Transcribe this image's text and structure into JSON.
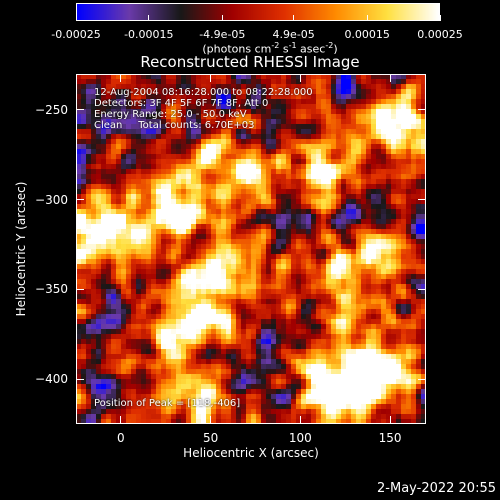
{
  "colorbar": {
    "ticks": [
      "-0.00025",
      "-0.00015",
      "-4.9e-05",
      "4.9e-05",
      "0.00015",
      "0.00025"
    ],
    "tick_values": [
      -0.00025,
      -0.00015,
      -4.9e-05,
      4.9e-05,
      0.00015,
      0.00025
    ],
    "range": [
      -0.00025,
      0.00025
    ],
    "unit_prefix": "(photons cm",
    "unit_exp1": "-2",
    "unit_mid1": " s",
    "unit_exp2": "-1",
    "unit_mid2": " asec",
    "unit_exp3": "-2",
    "unit_suffix": ")"
  },
  "annotations": {
    "time": "12-Aug-2004 08:16:28.000 to 08:22:28.000",
    "detectors": "Detectors: 3F 4F 5F 6F 7F 8F, Att 0",
    "energy": "Energy Range: 25.0 - 50.0 keV",
    "method": "Clean     Total counts: 6.70E+03",
    "peak": "Position of Peak = [118,-406]"
  },
  "footer": {
    "date": "2-May-2022 20:55"
  },
  "chart_data": {
    "type": "heatmap",
    "title": "Reconstructed RHESSI Image",
    "xlabel": "Heliocentric X (arcsec)",
    "ylabel": "Heliocentric Y (arcsec)",
    "xlim": [
      -25,
      170
    ],
    "ylim": [
      -425,
      -230
    ],
    "xticks": [
      0,
      50,
      100,
      150
    ],
    "yticks": [
      -250,
      -300,
      -350,
      -400
    ],
    "xtick_labels": [
      "0",
      "50",
      "100",
      "150"
    ],
    "ytick_labels": [
      "−250",
      "−300",
      "−350",
      "−400"
    ],
    "colormap": [
      "#0000ff",
      "#6a3aaa",
      "#181818",
      "#a00000",
      "#e03000",
      "#ff8a00",
      "#ffe040",
      "#ffffff"
    ],
    "peak_position": [
      118,
      -406
    ],
    "bright_regions": [
      {
        "x": -12,
        "y": -320,
        "level": 0.9
      },
      {
        "x": 30,
        "y": -300,
        "level": 0.8
      },
      {
        "x": 65,
        "y": -285,
        "level": 0.75
      },
      {
        "x": 55,
        "y": -345,
        "level": 0.85
      },
      {
        "x": 35,
        "y": -375,
        "level": 0.7
      },
      {
        "x": 120,
        "y": -405,
        "level": 1.0
      },
      {
        "x": 145,
        "y": -395,
        "level": 0.9
      },
      {
        "x": 160,
        "y": -260,
        "level": 0.85
      },
      {
        "x": 130,
        "y": -345,
        "level": 0.8
      },
      {
        "x": 115,
        "y": -280,
        "level": 0.6
      },
      {
        "x": 45,
        "y": -410,
        "level": 0.6
      }
    ]
  }
}
